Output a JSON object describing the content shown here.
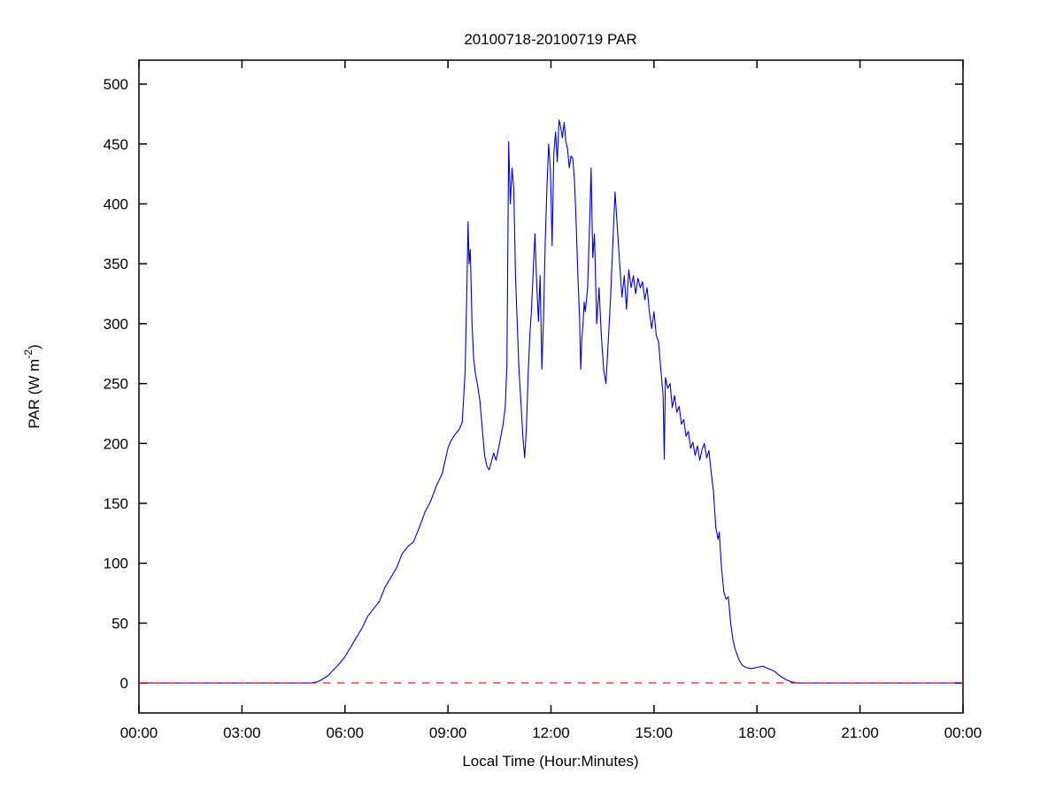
{
  "chart_data": {
    "type": "line",
    "title": "20100718-20100719 PAR",
    "xlabel": "Local Time (Hour:Minutes)",
    "ylabel": "PAR (W m-2)",
    "ylabel_parts": {
      "base": "PAR (W m",
      "sup": "-2",
      "close": ")"
    },
    "x_range_minutes": [
      0,
      1440
    ],
    "y_axis_range": [
      0,
      500
    ],
    "y_render_range": [
      -25,
      520
    ],
    "grid": false,
    "legend": null,
    "x_ticks": [
      {
        "minutes": 0,
        "label": "00:00"
      },
      {
        "minutes": 180,
        "label": "03:00"
      },
      {
        "minutes": 360,
        "label": "06:00"
      },
      {
        "minutes": 540,
        "label": "09:00"
      },
      {
        "minutes": 720,
        "label": "12:00"
      },
      {
        "minutes": 900,
        "label": "15:00"
      },
      {
        "minutes": 1080,
        "label": "18:00"
      },
      {
        "minutes": 1260,
        "label": "21:00"
      },
      {
        "minutes": 1440,
        "label": "00:00"
      }
    ],
    "y_ticks": [
      0,
      50,
      100,
      150,
      200,
      250,
      300,
      350,
      400,
      450,
      500
    ],
    "series": [
      {
        "name": "PAR",
        "color": "#0000CC",
        "style": "solid",
        "points": [
          [
            0,
            0
          ],
          [
            30,
            0
          ],
          [
            60,
            0
          ],
          [
            90,
            0
          ],
          [
            120,
            0
          ],
          [
            150,
            0
          ],
          [
            180,
            0
          ],
          [
            210,
            0
          ],
          [
            240,
            0
          ],
          [
            270,
            0
          ],
          [
            300,
            0
          ],
          [
            312,
            1
          ],
          [
            320,
            3
          ],
          [
            330,
            6
          ],
          [
            340,
            11
          ],
          [
            350,
            16
          ],
          [
            360,
            22
          ],
          [
            370,
            30
          ],
          [
            380,
            38
          ],
          [
            390,
            46
          ],
          [
            400,
            56
          ],
          [
            410,
            62
          ],
          [
            420,
            68
          ],
          [
            430,
            80
          ],
          [
            440,
            88
          ],
          [
            450,
            96
          ],
          [
            460,
            108
          ],
          [
            470,
            114
          ],
          [
            480,
            118
          ],
          [
            490,
            130
          ],
          [
            500,
            143
          ],
          [
            510,
            152
          ],
          [
            520,
            165
          ],
          [
            530,
            175
          ],
          [
            540,
            196
          ],
          [
            545,
            202
          ],
          [
            550,
            206
          ],
          [
            555,
            209
          ],
          [
            560,
            212
          ],
          [
            565,
            218
          ],
          [
            570,
            260
          ],
          [
            573,
            330
          ],
          [
            575,
            385
          ],
          [
            577,
            350
          ],
          [
            579,
            362
          ],
          [
            582,
            300
          ],
          [
            585,
            270
          ],
          [
            588,
            258
          ],
          [
            592,
            248
          ],
          [
            596,
            235
          ],
          [
            600,
            212
          ],
          [
            604,
            190
          ],
          [
            608,
            181
          ],
          [
            612,
            178
          ],
          [
            616,
            185
          ],
          [
            620,
            192
          ],
          [
            624,
            186
          ],
          [
            628,
            195
          ],
          [
            632,
            205
          ],
          [
            636,
            215
          ],
          [
            640,
            230
          ],
          [
            643,
            265
          ],
          [
            646,
            452
          ],
          [
            649,
            400
          ],
          [
            652,
            430
          ],
          [
            655,
            412
          ],
          [
            658,
            340
          ],
          [
            661,
            300
          ],
          [
            664,
            262
          ],
          [
            668,
            230
          ],
          [
            671,
            205
          ],
          [
            674,
            188
          ],
          [
            677,
            212
          ],
          [
            680,
            255
          ],
          [
            683,
            290
          ],
          [
            686,
            312
          ],
          [
            689,
            345
          ],
          [
            692,
            375
          ],
          [
            695,
            335
          ],
          [
            698,
            302
          ],
          [
            701,
            340
          ],
          [
            704,
            262
          ],
          [
            707,
            305
          ],
          [
            710,
            368
          ],
          [
            713,
            415
          ],
          [
            716,
            450
          ],
          [
            719,
            428
          ],
          [
            722,
            365
          ],
          [
            725,
            442
          ],
          [
            728,
            460
          ],
          [
            731,
            435
          ],
          [
            734,
            470
          ],
          [
            737,
            464
          ],
          [
            740,
            455
          ],
          [
            743,
            468
          ],
          [
            746,
            452
          ],
          [
            749,
            446
          ],
          [
            752,
            430
          ],
          [
            755,
            440
          ],
          [
            758,
            438
          ],
          [
            761,
            420
          ],
          [
            764,
            385
          ],
          [
            767,
            340
          ],
          [
            770,
            305
          ],
          [
            772,
            262
          ],
          [
            774,
            288
          ],
          [
            776,
            300
          ],
          [
            778,
            318
          ],
          [
            780,
            310
          ],
          [
            784,
            330
          ],
          [
            788,
            392
          ],
          [
            790,
            430
          ],
          [
            793,
            355
          ],
          [
            796,
            375
          ],
          [
            800,
            300
          ],
          [
            804,
            330
          ],
          [
            808,
            290
          ],
          [
            812,
            262
          ],
          [
            816,
            250
          ],
          [
            820,
            285
          ],
          [
            824,
            320
          ],
          [
            828,
            365
          ],
          [
            832,
            410
          ],
          [
            836,
            380
          ],
          [
            840,
            350
          ],
          [
            844,
            322
          ],
          [
            848,
            340
          ],
          [
            852,
            312
          ],
          [
            856,
            345
          ],
          [
            860,
            330
          ],
          [
            864,
            340
          ],
          [
            868,
            325
          ],
          [
            872,
            338
          ],
          [
            876,
            330
          ],
          [
            880,
            335
          ],
          [
            884,
            320
          ],
          [
            888,
            330
          ],
          [
            892,
            310
          ],
          [
            896,
            296
          ],
          [
            900,
            310
          ],
          [
            904,
            290
          ],
          [
            908,
            285
          ],
          [
            912,
            262
          ],
          [
            916,
            240
          ],
          [
            918,
            187
          ],
          [
            920,
            255
          ],
          [
            924,
            246
          ],
          [
            928,
            250
          ],
          [
            932,
            230
          ],
          [
            936,
            240
          ],
          [
            940,
            226
          ],
          [
            944,
            231
          ],
          [
            948,
            216
          ],
          [
            952,
            220
          ],
          [
            956,
            206
          ],
          [
            960,
            210
          ],
          [
            964,
            196
          ],
          [
            968,
            201
          ],
          [
            972,
            190
          ],
          [
            976,
            198
          ],
          [
            980,
            186
          ],
          [
            984,
            195
          ],
          [
            988,
            200
          ],
          [
            992,
            188
          ],
          [
            996,
            194
          ],
          [
            1000,
            176
          ],
          [
            1004,
            160
          ],
          [
            1008,
            130
          ],
          [
            1012,
            120
          ],
          [
            1014,
            126
          ],
          [
            1018,
            96
          ],
          [
            1022,
            76
          ],
          [
            1026,
            70
          ],
          [
            1030,
            72
          ],
          [
            1034,
            50
          ],
          [
            1038,
            36
          ],
          [
            1042,
            28
          ],
          [
            1048,
            20
          ],
          [
            1054,
            15
          ],
          [
            1060,
            13
          ],
          [
            1070,
            12
          ],
          [
            1080,
            13
          ],
          [
            1090,
            14
          ],
          [
            1100,
            12
          ],
          [
            1110,
            10
          ],
          [
            1120,
            6
          ],
          [
            1130,
            3
          ],
          [
            1140,
            1
          ],
          [
            1150,
            0
          ],
          [
            1170,
            0
          ],
          [
            1200,
            0
          ],
          [
            1230,
            0
          ],
          [
            1260,
            0
          ],
          [
            1290,
            0
          ],
          [
            1320,
            0
          ],
          [
            1350,
            0
          ],
          [
            1380,
            0
          ],
          [
            1410,
            0
          ],
          [
            1440,
            0
          ]
        ]
      },
      {
        "name": "zero-reference",
        "color": "#FF0000",
        "style": "dashed",
        "points": [
          [
            0,
            0
          ],
          [
            1440,
            0
          ]
        ]
      }
    ]
  }
}
